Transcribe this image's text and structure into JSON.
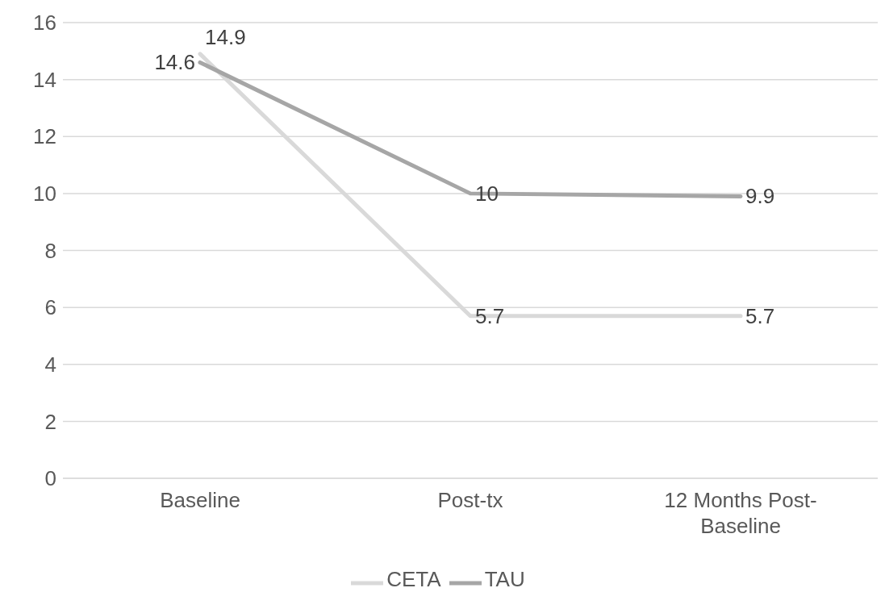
{
  "chart_data": {
    "type": "line",
    "categories": [
      "Baseline",
      "Post-tx",
      "12 Months Post-Baseline"
    ],
    "series": [
      {
        "name": "CETA",
        "color": "#d9d9d9",
        "values": [
          14.9,
          5.7,
          5.7
        ]
      },
      {
        "name": "TAU",
        "color": "#a6a6a6",
        "values": [
          14.6,
          10,
          9.9
        ]
      }
    ],
    "ylim": [
      0,
      16
    ],
    "yticks": [
      0,
      2,
      4,
      6,
      8,
      10,
      12,
      14,
      16
    ],
    "grid": "y",
    "legend": "bottom",
    "data_labels": true,
    "marker": "none",
    "line_style": "solid"
  }
}
